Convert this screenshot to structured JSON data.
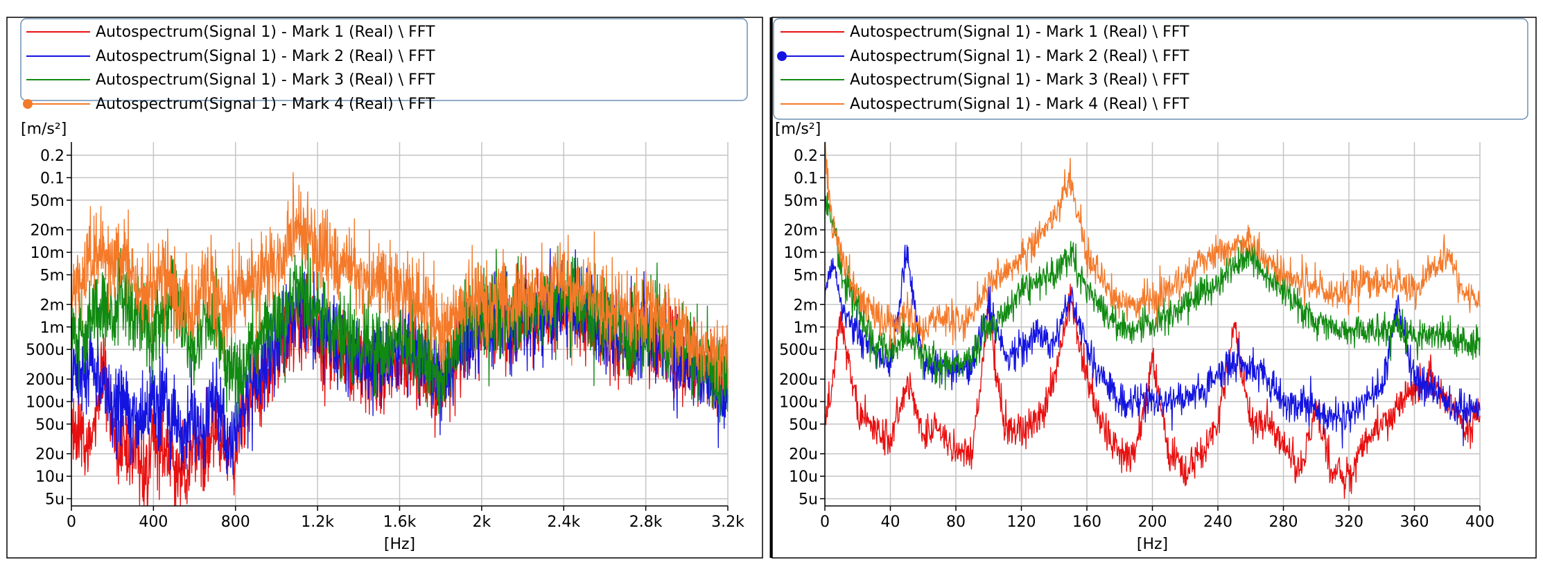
{
  "panels": [
    {
      "legend": [
        {
          "label": "Autospectrum(Signal 1) - Mark 1 (Real) \\ FFT",
          "color": "#e81010",
          "marker": false
        },
        {
          "label": "Autospectrum(Signal 1) - Mark 2 (Real) \\ FFT",
          "color": "#1414e0",
          "marker": false
        },
        {
          "label": "Autospectrum(Signal 1) - Mark 3 (Real) \\ FFT",
          "color": "#118a11",
          "marker": false
        },
        {
          "label": "Autospectrum(Signal 1) - Mark 4 (Real) \\ FFT",
          "color": "#f47a2a",
          "marker": true
        }
      ],
      "yunit": "[m/s²]",
      "xlabel": "[Hz]"
    },
    {
      "legend": [
        {
          "label": "Autospectrum(Signal 1) - Mark 1 (Real) \\ FFT",
          "color": "#e81010",
          "marker": false
        },
        {
          "label": "Autospectrum(Signal 1) - Mark 2 (Real) \\ FFT",
          "color": "#1414e0",
          "marker": true
        },
        {
          "label": "Autospectrum(Signal 1) - Mark 3 (Real) \\ FFT",
          "color": "#118a11",
          "marker": false
        },
        {
          "label": "Autospectrum(Signal 1) - Mark 4 (Real) \\ FFT",
          "color": "#f47a2a",
          "marker": false
        }
      ],
      "yunit": "[m/s²]",
      "xlabel": "[Hz]"
    }
  ],
  "chart_data": [
    {
      "type": "line",
      "xlabel": "[Hz]",
      "ylabel": "[m/s²]",
      "yscale": "log",
      "xlim": [
        0,
        3200
      ],
      "ylim": [
        4e-06,
        0.3
      ],
      "xticks": [
        0,
        400,
        800,
        1200,
        1600,
        2000,
        2400,
        2800,
        3200
      ],
      "xtick_labels": [
        "0",
        "400",
        "800",
        "1.2k",
        "1.6k",
        "2k",
        "2.4k",
        "2.8k",
        "3.2k"
      ],
      "yticks": [
        0.2,
        0.1,
        0.05,
        0.02,
        0.01,
        0.005,
        0.002,
        0.001,
        0.0005,
        0.0002,
        0.0001,
        5e-05,
        2e-05,
        1e-05,
        5e-06
      ],
      "ytick_labels": [
        "0.2",
        "0.1",
        "50m",
        "20m",
        "10m",
        "5m",
        "2m",
        "1m",
        "500u",
        "200u",
        "100u",
        "50u",
        "20u",
        "10u",
        "5u"
      ],
      "grid": true,
      "legend_position": "top",
      "series": [
        {
          "name": "Autospectrum(Signal 1) - Mark 1 (Real) \\ FFT",
          "color": "#e81010",
          "x": [
            0,
            50,
            100,
            150,
            200,
            250,
            300,
            350,
            400,
            450,
            500,
            550,
            600,
            650,
            700,
            750,
            800,
            850,
            900,
            950,
            1000,
            1050,
            1100,
            1150,
            1200,
            1300,
            1400,
            1500,
            1600,
            1700,
            1800,
            1900,
            2000,
            2100,
            2200,
            2300,
            2400,
            2500,
            2600,
            2700,
            2800,
            2900,
            3000,
            3100,
            3200
          ],
          "y": [
            4e-05,
            3e-05,
            3e-05,
            0.00025,
            5e-05,
            3e-05,
            2e-05,
            1e-05,
            3e-05,
            2e-05,
            1.5e-05,
            1e-05,
            3e-05,
            2e-05,
            4e-05,
            2e-05,
            2e-05,
            8e-05,
            0.00015,
            0.00025,
            0.0004,
            0.0008,
            0.0015,
            0.0012,
            0.0008,
            0.0004,
            0.0003,
            0.0002,
            0.0004,
            0.0003,
            0.00015,
            0.0005,
            0.001,
            0.0009,
            0.0011,
            0.0015,
            0.0018,
            0.0012,
            0.0008,
            0.0005,
            0.0007,
            0.0005,
            0.0003,
            0.00025,
            0.0002
          ]
        },
        {
          "name": "Autospectrum(Signal 1) - Mark 2 (Real) \\ FFT",
          "color": "#1414e0",
          "x": [
            0,
            50,
            100,
            150,
            200,
            250,
            300,
            350,
            400,
            450,
            500,
            550,
            600,
            650,
            700,
            750,
            800,
            850,
            900,
            950,
            1000,
            1050,
            1100,
            1150,
            1200,
            1300,
            1400,
            1500,
            1600,
            1700,
            1800,
            1900,
            2000,
            2100,
            2200,
            2300,
            2400,
            2500,
            2600,
            2700,
            2800,
            2900,
            3000,
            3100,
            3200
          ],
          "y": [
            0.0003,
            0.0002,
            0.0004,
            0.00012,
            8e-05,
            0.00015,
            6e-05,
            5e-05,
            0.0001,
            0.0001,
            6e-05,
            3e-05,
            6e-05,
            5e-05,
            0.00012,
            3e-05,
            4e-05,
            0.00012,
            0.0002,
            0.0003,
            0.0005,
            0.0009,
            0.002,
            0.0015,
            0.001,
            0.0005,
            0.0004,
            0.0003,
            0.0005,
            0.0004,
            0.0002,
            0.0006,
            0.0012,
            0.001,
            0.0012,
            0.0016,
            0.002,
            0.0013,
            0.0009,
            0.0006,
            0.0008,
            0.0005,
            0.0003,
            0.0002,
            0.00015
          ]
        },
        {
          "name": "Autospectrum(Signal 1) - Mark 3 (Real) \\ FFT",
          "color": "#118a11",
          "x": [
            0,
            50,
            100,
            150,
            200,
            250,
            300,
            350,
            400,
            450,
            500,
            550,
            600,
            650,
            700,
            750,
            800,
            850,
            900,
            950,
            1000,
            1050,
            1100,
            1150,
            1200,
            1300,
            1400,
            1500,
            1600,
            1700,
            1800,
            1900,
            2000,
            2100,
            2200,
            2300,
            2400,
            2500,
            2600,
            2700,
            2800,
            2900,
            3000,
            3100,
            3200
          ],
          "y": [
            0.001,
            0.0006,
            0.0015,
            0.002,
            0.0015,
            0.004,
            0.0015,
            0.0012,
            0.0008,
            0.0012,
            0.0025,
            0.001,
            0.0004,
            0.0015,
            0.001,
            0.0003,
            0.0002,
            0.0004,
            0.0006,
            0.0008,
            0.001,
            0.0015,
            0.004,
            0.0025,
            0.0015,
            0.0008,
            0.0006,
            0.0005,
            0.0006,
            0.0005,
            0.0002,
            0.0008,
            0.0015,
            0.0014,
            0.0016,
            0.002,
            0.003,
            0.002,
            0.0012,
            0.0008,
            0.001,
            0.0007,
            0.0005,
            0.0003,
            0.0003
          ]
        },
        {
          "name": "Autospectrum(Signal 1) - Mark 4 (Real) \\ FFT",
          "color": "#f47a2a",
          "x": [
            0,
            50,
            100,
            150,
            200,
            250,
            300,
            350,
            400,
            450,
            500,
            550,
            600,
            650,
            700,
            750,
            800,
            850,
            900,
            950,
            1000,
            1050,
            1100,
            1150,
            1200,
            1300,
            1400,
            1500,
            1600,
            1700,
            1800,
            1900,
            2000,
            2100,
            2200,
            2300,
            2400,
            2500,
            2600,
            2700,
            2800,
            2900,
            3000,
            3100,
            3200
          ],
          "y": [
            0.003,
            0.004,
            0.01,
            0.008,
            0.006,
            0.01,
            0.004,
            0.003,
            0.004,
            0.005,
            0.003,
            0.002,
            0.0015,
            0.005,
            0.003,
            0.0015,
            0.003,
            0.003,
            0.004,
            0.005,
            0.006,
            0.01,
            0.025,
            0.015,
            0.01,
            0.008,
            0.005,
            0.004,
            0.003,
            0.002,
            0.0008,
            0.002,
            0.002,
            0.0025,
            0.0022,
            0.003,
            0.004,
            0.0028,
            0.0018,
            0.0015,
            0.0016,
            0.0012,
            0.0008,
            0.0005,
            0.0005
          ]
        }
      ]
    },
    {
      "type": "line",
      "xlabel": "[Hz]",
      "ylabel": "[m/s²]",
      "yscale": "log",
      "xlim": [
        0,
        400
      ],
      "ylim": [
        4e-06,
        0.3
      ],
      "xticks": [
        0,
        40,
        80,
        120,
        160,
        200,
        240,
        280,
        320,
        360,
        400
      ],
      "xtick_labels": [
        "0",
        "40",
        "80",
        "120",
        "160",
        "200",
        "240",
        "280",
        "320",
        "360",
        "400"
      ],
      "yticks": [
        0.2,
        0.1,
        0.05,
        0.02,
        0.01,
        0.005,
        0.002,
        0.001,
        0.0005,
        0.0002,
        0.0001,
        5e-05,
        2e-05,
        1e-05,
        5e-06
      ],
      "ytick_labels": [
        "0.2",
        "0.1",
        "50m",
        "20m",
        "10m",
        "5m",
        "2m",
        "1m",
        "500u",
        "200u",
        "100u",
        "50u",
        "20u",
        "10u",
        "5u"
      ],
      "grid": true,
      "legend_position": "top",
      "series": [
        {
          "name": "Autospectrum(Signal 1) - Mark 1 (Real) \\ FFT",
          "color": "#e81010",
          "x": [
            0,
            5,
            10,
            15,
            20,
            30,
            40,
            50,
            60,
            70,
            80,
            90,
            100,
            110,
            120,
            130,
            140,
            150,
            160,
            170,
            180,
            190,
            200,
            210,
            220,
            230,
            240,
            250,
            260,
            270,
            280,
            290,
            300,
            310,
            320,
            330,
            340,
            350,
            360,
            370,
            380,
            390,
            400
          ],
          "y": [
            4e-05,
            0.0002,
            0.0015,
            0.0003,
            8e-05,
            4e-05,
            3e-05,
            0.0002,
            4e-05,
            4e-05,
            2e-05,
            2e-05,
            0.0015,
            4e-05,
            4e-05,
            5e-05,
            0.0002,
            0.002,
            0.0002,
            5e-05,
            2e-05,
            2e-05,
            0.0004,
            2e-05,
            1e-05,
            2e-05,
            5e-05,
            0.001,
            5e-05,
            5e-05,
            3e-05,
            1e-05,
            0.0001,
            1e-05,
            1e-05,
            3e-05,
            5e-05,
            8e-05,
            0.00015,
            0.0002,
            0.0001,
            5e-05,
            6e-05
          ]
        },
        {
          "name": "Autospectrum(Signal 1) - Mark 2 (Real) \\ FFT",
          "color": "#1414e0",
          "x": [
            0,
            5,
            10,
            15,
            20,
            30,
            40,
            50,
            60,
            70,
            80,
            90,
            100,
            110,
            120,
            130,
            140,
            150,
            160,
            170,
            180,
            190,
            200,
            210,
            220,
            230,
            240,
            250,
            260,
            270,
            280,
            290,
            300,
            310,
            320,
            330,
            340,
            350,
            360,
            370,
            380,
            390,
            400
          ],
          "y": [
            0.003,
            0.008,
            0.002,
            0.001,
            0.0008,
            0.0005,
            0.0003,
            0.01,
            0.0003,
            0.0003,
            0.00025,
            0.0003,
            0.002,
            0.0004,
            0.0005,
            0.0008,
            0.0006,
            0.003,
            0.0005,
            0.0002,
            0.0001,
            0.0001,
            0.0001,
            0.0001,
            0.0001,
            0.00015,
            0.0002,
            0.0004,
            0.0003,
            0.0002,
            0.0001,
            0.0001,
            8e-05,
            6e-05,
            7e-05,
            0.0001,
            0.00015,
            0.002,
            0.0002,
            0.00015,
            0.0001,
            8e-05,
            8e-05
          ]
        },
        {
          "name": "Autospectrum(Signal 1) - Mark 3 (Real) \\ FFT",
          "color": "#118a11",
          "x": [
            0,
            5,
            10,
            15,
            20,
            30,
            40,
            50,
            60,
            70,
            80,
            90,
            100,
            110,
            120,
            130,
            140,
            150,
            160,
            170,
            180,
            190,
            200,
            210,
            220,
            230,
            240,
            250,
            260,
            270,
            280,
            290,
            300,
            310,
            320,
            330,
            340,
            350,
            360,
            370,
            380,
            390,
            400
          ],
          "y": [
            0.05,
            0.03,
            0.005,
            0.003,
            0.0015,
            0.0006,
            0.0005,
            0.0008,
            0.0004,
            0.0003,
            0.0003,
            0.0004,
            0.001,
            0.0015,
            0.003,
            0.004,
            0.005,
            0.01,
            0.003,
            0.0015,
            0.001,
            0.001,
            0.0012,
            0.0015,
            0.002,
            0.003,
            0.004,
            0.006,
            0.01,
            0.005,
            0.003,
            0.002,
            0.0012,
            0.001,
            0.0008,
            0.001,
            0.0008,
            0.001,
            0.0008,
            0.0008,
            0.0007,
            0.0006,
            0.0006
          ]
        },
        {
          "name": "Autospectrum(Signal 1) - Mark 4 (Real) \\ FFT",
          "color": "#f47a2a",
          "x": [
            0,
            5,
            10,
            15,
            20,
            30,
            40,
            50,
            60,
            70,
            80,
            90,
            100,
            110,
            120,
            130,
            140,
            150,
            160,
            170,
            180,
            190,
            200,
            210,
            220,
            230,
            240,
            250,
            260,
            270,
            280,
            290,
            300,
            310,
            320,
            330,
            340,
            350,
            360,
            370,
            380,
            390,
            400
          ],
          "y": [
            0.25,
            0.02,
            0.01,
            0.005,
            0.003,
            0.0015,
            0.001,
            0.0015,
            0.001,
            0.0015,
            0.0012,
            0.0015,
            0.004,
            0.005,
            0.01,
            0.015,
            0.03,
            0.09,
            0.01,
            0.004,
            0.002,
            0.002,
            0.0025,
            0.003,
            0.005,
            0.008,
            0.01,
            0.012,
            0.015,
            0.008,
            0.005,
            0.004,
            0.003,
            0.003,
            0.003,
            0.004,
            0.004,
            0.004,
            0.003,
            0.006,
            0.01,
            0.003,
            0.002
          ]
        }
      ]
    }
  ]
}
